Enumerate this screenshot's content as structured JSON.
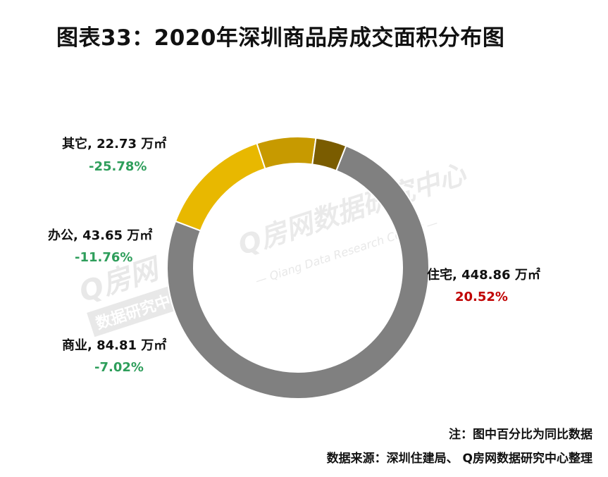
{
  "title": "图表33：2020年深圳商品房成交面积分布图",
  "colors": {
    "positive": "#c00000",
    "negative": "#2e9e5b"
  },
  "chart_data": {
    "type": "pie",
    "variant": "donut",
    "title": "图表33：2020年深圳商品房成交面积分布图",
    "unit": "万㎡",
    "slices": [
      {
        "name": "住宅",
        "value": 448.86,
        "value_label": "448.86 万㎡",
        "label": "住宅, 448.86 万㎡",
        "yoy": "20.52%",
        "color": "#808080",
        "pct_color": "#c00000"
      },
      {
        "name": "商业",
        "value": 84.81,
        "value_label": "84.81 万㎡",
        "label": "商业, 84.81 万㎡",
        "yoy": "-7.02%",
        "color": "#e8b800",
        "pct_color": "#2e9e5b"
      },
      {
        "name": "办公",
        "value": 43.65,
        "value_label": "43.65 万㎡",
        "label": "办公, 43.65 万㎡",
        "yoy": "-11.76%",
        "color": "#c79a00",
        "pct_color": "#2e9e5b"
      },
      {
        "name": "其它",
        "value": 22.73,
        "value_label": "22.73 万㎡",
        "label": "其它, 22.73 万㎡",
        "yoy": "-25.78%",
        "color": "#7a5c00",
        "pct_color": "#2e9e5b"
      }
    ]
  },
  "watermark": {
    "main": "Q房网数据研究中心",
    "sub": "— Qiang Data Research Center —",
    "logo_big": "Q房网",
    "logo_band": "数据研究中心"
  },
  "notes": {
    "note": "注：图中百分比为同比数据",
    "source": "数据来源：深圳住建局、 Q房网数据研究中心整理"
  }
}
